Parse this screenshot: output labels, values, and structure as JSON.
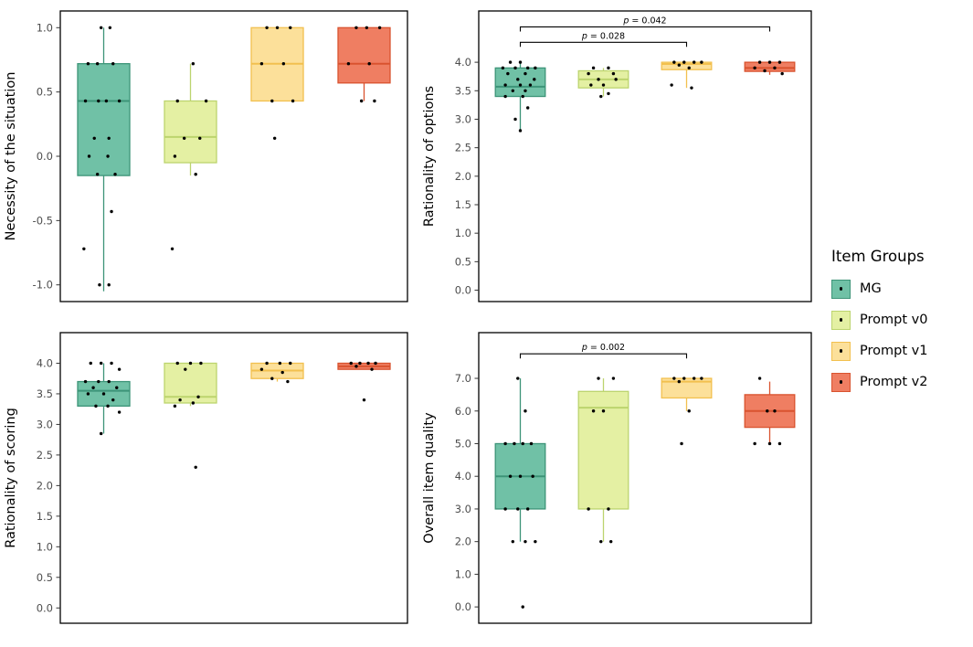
{
  "figure": {
    "background": "#FFFFFF",
    "point_color": "#000000",
    "panel_border_color": "#000000"
  },
  "legend": {
    "title": "Item Groups",
    "items": [
      {
        "label": "MG",
        "fill": "#70C1A6",
        "stroke": "#3D9478"
      },
      {
        "label": "Prompt v0",
        "fill": "#E4F0A3",
        "stroke": "#BCD46E"
      },
      {
        "label": "Prompt v1",
        "fill": "#FCE09A",
        "stroke": "#F2C04F"
      },
      {
        "label": "Prompt v2",
        "fill": "#EF7E62",
        "stroke": "#D9532F"
      }
    ]
  },
  "chart_data": {
    "type": "boxplot",
    "grid": false,
    "legend_position": "right",
    "groups": [
      "MG",
      "Prompt v0",
      "Prompt v1",
      "Prompt v2"
    ],
    "panels": [
      {
        "ylabel": "Necessity of the situation",
        "ylim": [
          -1.13,
          1.13
        ],
        "yticks": [
          -1.0,
          -0.5,
          0.0,
          0.5,
          1.0
        ],
        "boxes": [
          {
            "group": "MG",
            "lo": -1.05,
            "q1": -0.15,
            "median": 0.43,
            "q3": 0.72,
            "hi": 1.0
          },
          {
            "group": "Prompt v0",
            "lo": -0.15,
            "q1": -0.05,
            "median": 0.15,
            "q3": 0.43,
            "hi": 0.72
          },
          {
            "group": "Prompt v1",
            "lo": 0.43,
            "q1": 0.43,
            "median": 0.72,
            "q3": 1.0,
            "hi": 1.0
          },
          {
            "group": "Prompt v2",
            "lo": 0.43,
            "q1": 0.57,
            "median": 0.72,
            "q3": 1.0,
            "hi": 1.0
          }
        ],
        "points": [
          [
            [
              -0.05,
              1.0
            ],
            [
              0.12,
              1.0
            ],
            [
              -0.3,
              0.72
            ],
            [
              -0.12,
              0.72
            ],
            [
              0.18,
              0.72
            ],
            [
              -0.35,
              0.43
            ],
            [
              -0.1,
              0.43
            ],
            [
              0.05,
              0.43
            ],
            [
              0.3,
              0.43
            ],
            [
              -0.18,
              0.14
            ],
            [
              0.1,
              0.14
            ],
            [
              -0.28,
              0.0
            ],
            [
              0.08,
              0.0
            ],
            [
              -0.12,
              -0.14
            ],
            [
              0.22,
              -0.14
            ],
            [
              0.15,
              -0.43
            ],
            [
              -0.38,
              -0.72
            ],
            [
              -0.08,
              -1.0
            ],
            [
              0.1,
              -1.0
            ]
          ],
          [
            [
              0.05,
              0.72
            ],
            [
              -0.25,
              0.43
            ],
            [
              0.3,
              0.43
            ],
            [
              -0.12,
              0.14
            ],
            [
              0.18,
              0.14
            ],
            [
              -0.3,
              0.0
            ],
            [
              0.1,
              -0.14
            ],
            [
              -0.35,
              -0.72
            ]
          ],
          [
            [
              -0.2,
              1.0
            ],
            [
              0.0,
              1.0
            ],
            [
              0.25,
              1.0
            ],
            [
              -0.3,
              0.72
            ],
            [
              0.12,
              0.72
            ],
            [
              -0.1,
              0.43
            ],
            [
              0.3,
              0.43
            ],
            [
              -0.05,
              0.14
            ]
          ],
          [
            [
              -0.15,
              1.0
            ],
            [
              0.05,
              1.0
            ],
            [
              0.3,
              1.0
            ],
            [
              -0.3,
              0.72
            ],
            [
              0.1,
              0.72
            ],
            [
              -0.05,
              0.43
            ],
            [
              0.2,
              0.43
            ]
          ]
        ],
        "brackets": []
      },
      {
        "ylabel": "Rationality of options",
        "ylim": [
          -0.2,
          4.9
        ],
        "yticks": [
          0.0,
          0.5,
          1.0,
          1.5,
          2.0,
          2.5,
          3.0,
          3.5,
          4.0
        ],
        "boxes": [
          {
            "group": "MG",
            "lo": 2.8,
            "q1": 3.4,
            "median": 3.57,
            "q3": 3.9,
            "hi": 4.0
          },
          {
            "group": "Prompt v0",
            "lo": 3.4,
            "q1": 3.55,
            "median": 3.7,
            "q3": 3.85,
            "hi": 3.9
          },
          {
            "group": "Prompt v1",
            "lo": 3.55,
            "q1": 3.87,
            "median": 3.97,
            "q3": 4.0,
            "hi": 4.0
          },
          {
            "group": "Prompt v2",
            "lo": 3.78,
            "q1": 3.84,
            "median": 3.9,
            "q3": 4.0,
            "hi": 4.0
          }
        ],
        "points": [
          [
            [
              -0.2,
              4.0
            ],
            [
              0.0,
              4.0
            ],
            [
              -0.35,
              3.9
            ],
            [
              -0.1,
              3.9
            ],
            [
              0.15,
              3.9
            ],
            [
              0.3,
              3.9
            ],
            [
              -0.25,
              3.8
            ],
            [
              0.1,
              3.8
            ],
            [
              -0.05,
              3.7
            ],
            [
              0.28,
              3.7
            ],
            [
              -0.3,
              3.6
            ],
            [
              0.0,
              3.6
            ],
            [
              0.2,
              3.6
            ],
            [
              -0.15,
              3.5
            ],
            [
              0.1,
              3.5
            ],
            [
              -0.3,
              3.4
            ],
            [
              0.05,
              3.4
            ],
            [
              0.15,
              3.2
            ],
            [
              -0.1,
              3.0
            ],
            [
              0.0,
              2.8
            ]
          ],
          [
            [
              -0.2,
              3.9
            ],
            [
              0.1,
              3.9
            ],
            [
              -0.3,
              3.8
            ],
            [
              0.2,
              3.8
            ],
            [
              -0.1,
              3.7
            ],
            [
              0.25,
              3.7
            ],
            [
              -0.25,
              3.6
            ],
            [
              0.0,
              3.6
            ],
            [
              0.1,
              3.45
            ],
            [
              -0.05,
              3.4
            ]
          ],
          [
            [
              -0.25,
              4.0
            ],
            [
              -0.05,
              4.0
            ],
            [
              0.15,
              4.0
            ],
            [
              0.3,
              4.0
            ],
            [
              -0.15,
              3.95
            ],
            [
              0.05,
              3.9
            ],
            [
              -0.3,
              3.6
            ],
            [
              0.1,
              3.55
            ]
          ],
          [
            [
              -0.2,
              4.0
            ],
            [
              0.0,
              4.0
            ],
            [
              0.2,
              4.0
            ],
            [
              -0.3,
              3.9
            ],
            [
              0.1,
              3.9
            ],
            [
              -0.1,
              3.85
            ],
            [
              0.25,
              3.8
            ]
          ]
        ],
        "brackets": [
          {
            "x1": 0,
            "x2": 3,
            "y": 4.62,
            "label": "p = 0.042"
          },
          {
            "x1": 0,
            "x2": 2,
            "y": 4.35,
            "label": "p = 0.028"
          }
        ]
      },
      {
        "ylabel": "Rationality of scoring",
        "ylim": [
          -0.25,
          4.5
        ],
        "yticks": [
          0.0,
          0.5,
          1.0,
          1.5,
          2.0,
          2.5,
          3.0,
          3.5,
          4.0
        ],
        "boxes": [
          {
            "group": "MG",
            "lo": 2.85,
            "q1": 3.3,
            "median": 3.55,
            "q3": 3.7,
            "hi": 4.0
          },
          {
            "group": "Prompt v0",
            "lo": 3.3,
            "q1": 3.35,
            "median": 3.45,
            "q3": 4.0,
            "hi": 4.0
          },
          {
            "group": "Prompt v1",
            "lo": 3.7,
            "q1": 3.75,
            "median": 3.88,
            "q3": 4.0,
            "hi": 4.0
          },
          {
            "group": "Prompt v2",
            "lo": 3.9,
            "q1": 3.9,
            "median": 3.95,
            "q3": 4.0,
            "hi": 4.0
          }
        ],
        "points": [
          [
            [
              -0.25,
              4.0
            ],
            [
              -0.05,
              4.0
            ],
            [
              0.15,
              4.0
            ],
            [
              0.3,
              3.9
            ],
            [
              -0.35,
              3.7
            ],
            [
              -0.1,
              3.7
            ],
            [
              0.1,
              3.7
            ],
            [
              -0.2,
              3.6
            ],
            [
              0.25,
              3.6
            ],
            [
              -0.3,
              3.5
            ],
            [
              0.0,
              3.5
            ],
            [
              0.18,
              3.4
            ],
            [
              -0.15,
              3.3
            ],
            [
              0.08,
              3.3
            ],
            [
              0.3,
              3.2
            ],
            [
              -0.05,
              2.85
            ]
          ],
          [
            [
              -0.25,
              4.0
            ],
            [
              0.0,
              4.0
            ],
            [
              0.2,
              4.0
            ],
            [
              -0.1,
              3.9
            ],
            [
              0.15,
              3.45
            ],
            [
              -0.2,
              3.4
            ],
            [
              0.05,
              3.35
            ],
            [
              -0.3,
              3.3
            ],
            [
              0.1,
              2.3
            ]
          ],
          [
            [
              -0.2,
              4.0
            ],
            [
              0.05,
              4.0
            ],
            [
              0.25,
              4.0
            ],
            [
              -0.3,
              3.9
            ],
            [
              0.1,
              3.85
            ],
            [
              -0.1,
              3.75
            ],
            [
              0.2,
              3.7
            ]
          ],
          [
            [
              -0.25,
              4.0
            ],
            [
              -0.08,
              4.0
            ],
            [
              0.08,
              4.0
            ],
            [
              0.22,
              4.0
            ],
            [
              -0.15,
              3.95
            ],
            [
              0.15,
              3.9
            ],
            [
              0.0,
              3.4
            ]
          ]
        ],
        "brackets": []
      },
      {
        "ylabel": "Overall item quality",
        "ylim": [
          -0.5,
          8.4
        ],
        "yticks": [
          0.0,
          1.0,
          2.0,
          3.0,
          4.0,
          5.0,
          6.0,
          7.0
        ],
        "boxes": [
          {
            "group": "MG",
            "lo": 2.0,
            "q1": 3.0,
            "median": 4.0,
            "q3": 5.0,
            "hi": 7.0
          },
          {
            "group": "Prompt v0",
            "lo": 2.0,
            "q1": 3.0,
            "median": 6.1,
            "q3": 6.6,
            "hi": 7.0
          },
          {
            "group": "Prompt v1",
            "lo": 6.0,
            "q1": 6.4,
            "median": 6.9,
            "q3": 7.0,
            "hi": 7.0
          },
          {
            "group": "Prompt v2",
            "lo": 5.0,
            "q1": 5.5,
            "median": 6.0,
            "q3": 6.5,
            "hi": 6.9
          }
        ],
        "points": [
          [
            [
              -0.05,
              7.0
            ],
            [
              0.1,
              6.0
            ],
            [
              -0.3,
              5.0
            ],
            [
              -0.12,
              5.0
            ],
            [
              0.05,
              5.0
            ],
            [
              0.22,
              5.0
            ],
            [
              -0.2,
              4.0
            ],
            [
              0.0,
              4.0
            ],
            [
              0.25,
              4.0
            ],
            [
              -0.3,
              3.0
            ],
            [
              -0.05,
              3.0
            ],
            [
              0.15,
              3.0
            ],
            [
              -0.15,
              2.0
            ],
            [
              0.1,
              2.0
            ],
            [
              0.3,
              2.0
            ],
            [
              0.05,
              0.0
            ]
          ],
          [
            [
              -0.1,
              7.0
            ],
            [
              0.2,
              7.0
            ],
            [
              -0.2,
              6.0
            ],
            [
              0.0,
              6.0
            ],
            [
              -0.3,
              3.0
            ],
            [
              0.1,
              3.0
            ],
            [
              -0.05,
              2.0
            ],
            [
              0.15,
              2.0
            ]
          ],
          [
            [
              -0.25,
              7.0
            ],
            [
              -0.05,
              7.0
            ],
            [
              0.15,
              7.0
            ],
            [
              0.3,
              7.0
            ],
            [
              -0.15,
              6.9
            ],
            [
              0.05,
              6.0
            ],
            [
              -0.1,
              5.0
            ]
          ],
          [
            [
              -0.2,
              7.0
            ],
            [
              -0.05,
              6.0
            ],
            [
              0.1,
              6.0
            ],
            [
              -0.3,
              5.0
            ],
            [
              0.0,
              5.0
            ],
            [
              0.2,
              5.0
            ]
          ]
        ],
        "brackets": [
          {
            "x1": 0,
            "x2": 2,
            "y": 7.75,
            "label": "p = 0.002"
          }
        ]
      }
    ]
  }
}
